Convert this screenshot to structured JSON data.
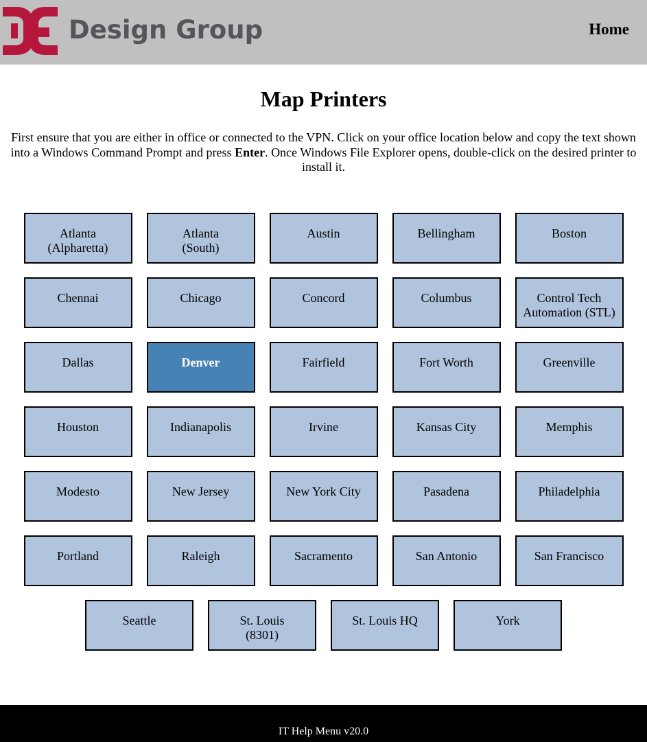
{
  "header": {
    "brand_text": "Design Group",
    "logo_mark_color": "#b5173c",
    "home_label": "Home"
  },
  "main": {
    "title": "Map Printers",
    "intro_before_bold": "First ensure that you are either in office or connected to the VPN. Click on your office location below and copy the text shown into a Windows Command Prompt and press ",
    "intro_bold": "Enter",
    "intro_after_bold": ". Once Windows File Explorer opens, double-click on the desired printer to install it."
  },
  "locations": {
    "rows": [
      [
        {
          "label": "Atlanta\n(Alpharetta)",
          "selected": false
        },
        {
          "label": "Atlanta\n(South)",
          "selected": false
        },
        {
          "label": "Austin",
          "selected": false
        },
        {
          "label": "Bellingham",
          "selected": false
        },
        {
          "label": "Boston",
          "selected": false
        }
      ],
      [
        {
          "label": "Chennai",
          "selected": false
        },
        {
          "label": "Chicago",
          "selected": false
        },
        {
          "label": "Concord",
          "selected": false
        },
        {
          "label": "Columbus",
          "selected": false
        },
        {
          "label": "Control Tech\nAutomation (STL)",
          "selected": false
        }
      ],
      [
        {
          "label": "Dallas",
          "selected": false
        },
        {
          "label": "Denver",
          "selected": true
        },
        {
          "label": "Fairfield",
          "selected": false
        },
        {
          "label": "Fort Worth",
          "selected": false
        },
        {
          "label": "Greenville",
          "selected": false
        }
      ],
      [
        {
          "label": "Houston",
          "selected": false
        },
        {
          "label": "Indianapolis",
          "selected": false
        },
        {
          "label": "Irvine",
          "selected": false
        },
        {
          "label": "Kansas City",
          "selected": false
        },
        {
          "label": "Memphis",
          "selected": false
        }
      ],
      [
        {
          "label": "Modesto",
          "selected": false
        },
        {
          "label": "New Jersey",
          "selected": false
        },
        {
          "label": "New York City",
          "selected": false
        },
        {
          "label": "Pasadena",
          "selected": false
        },
        {
          "label": "Philadelphia",
          "selected": false
        }
      ],
      [
        {
          "label": "Portland",
          "selected": false
        },
        {
          "label": "Raleigh",
          "selected": false
        },
        {
          "label": "Sacramento",
          "selected": false
        },
        {
          "label": "San Antonio",
          "selected": false
        },
        {
          "label": "San Francisco",
          "selected": false
        }
      ],
      [
        {
          "label": "Seattle",
          "selected": false
        },
        {
          "label": "St. Louis\n(8301)",
          "selected": false
        },
        {
          "label": "St. Louis HQ",
          "selected": false
        },
        {
          "label": "York",
          "selected": false
        }
      ]
    ],
    "button_color": "#b0c4de",
    "selected_color": "#4682b4"
  },
  "footer": {
    "text": "IT Help Menu v20.0"
  }
}
